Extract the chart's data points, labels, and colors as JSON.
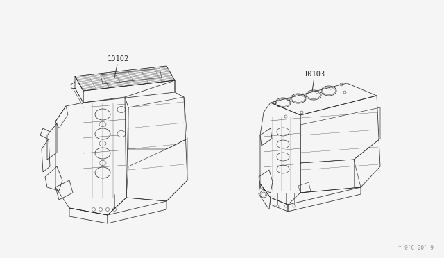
{
  "bg_color": "#f5f5f5",
  "line_color": "#2a2a2a",
  "label_color": "#333333",
  "part_labels": [
    "10102",
    "10103"
  ],
  "footnote": "^ 0'C 00' 9",
  "footnote_color": "#888888",
  "label_fontsize": 7.5,
  "lw": 0.55
}
